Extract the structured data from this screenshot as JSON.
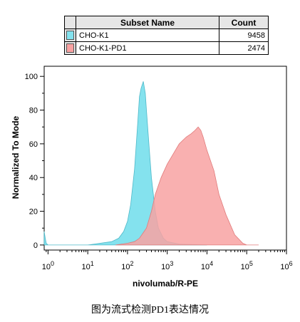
{
  "legend": {
    "header_subset": "Subset Name",
    "header_count": "Count",
    "rows": [
      {
        "name": "CHO-K1",
        "count": "9458",
        "color": "#84e2ee"
      },
      {
        "name": "CHO-K1-PD1",
        "count": "2474",
        "color": "#f8a2a2"
      }
    ]
  },
  "caption": "图为流式检测PD1表达情况",
  "chart_data": {
    "type": "area",
    "xlabel": "nivolumab/R-PE",
    "ylabel": "Normalized To Mode",
    "x_scale": "log",
    "xlim": [
      0.8,
      1000000
    ],
    "ylim": [
      -3,
      106
    ],
    "x_tick_labels": [
      "10^0",
      "10^1",
      "10^2",
      "10^3",
      "10^4",
      "10^5",
      "10^6"
    ],
    "y_ticks": [
      0,
      20,
      40,
      60,
      80,
      100
    ],
    "series": [
      {
        "name": "CHO-K1",
        "color": "#84e2ee",
        "x": [
          0.8,
          0.85,
          0.9,
          1,
          10,
          40,
          60,
          80,
          100,
          120,
          150,
          180,
          200,
          220,
          250,
          280,
          300,
          350,
          400,
          500,
          600,
          800,
          1000,
          2000,
          10000
        ],
        "y": [
          8,
          4,
          1,
          0,
          0,
          2,
          4,
          8,
          14,
          24,
          45,
          72,
          88,
          93,
          97,
          90,
          80,
          58,
          40,
          20,
          10,
          4,
          2,
          0.5,
          0
        ]
      },
      {
        "name": "CHO-K1-PD1",
        "color": "#f8a2a2",
        "x": [
          50,
          100,
          150,
          200,
          300,
          400,
          500,
          700,
          1000,
          1500,
          2000,
          3000,
          4000,
          5000,
          6000,
          7000,
          8000,
          10000,
          15000,
          20000,
          30000,
          50000,
          80000,
          100000,
          200000
        ],
        "y": [
          0,
          1,
          2,
          4,
          10,
          20,
          30,
          40,
          48,
          55,
          60,
          64,
          66,
          68,
          70,
          68,
          64,
          56,
          44,
          30,
          18,
          6,
          1,
          0,
          0
        ]
      }
    ]
  }
}
